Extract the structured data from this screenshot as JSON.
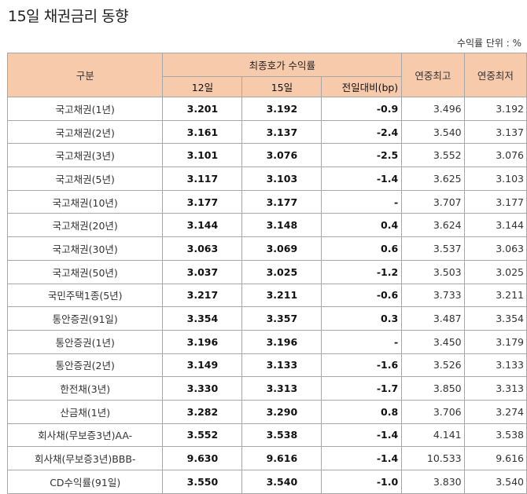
{
  "title": "15일 채권금리 동향",
  "unit_label": "수익률 단위 : %",
  "table": {
    "headers": {
      "category": "구분",
      "group": "최종호가 수익률",
      "day12": "12일",
      "day15": "15일",
      "diff": "전일대비(bp)",
      "year_high": "연중최고",
      "year_low": "연중최저"
    },
    "rows": [
      {
        "name": "국고채권(1년)",
        "d12": "3.201",
        "d15": "3.192",
        "diff": "-0.9",
        "high": "3.496",
        "low": "3.192"
      },
      {
        "name": "국고채권(2년)",
        "d12": "3.161",
        "d15": "3.137",
        "diff": "-2.4",
        "high": "3.540",
        "low": "3.137"
      },
      {
        "name": "국고채권(3년)",
        "d12": "3.101",
        "d15": "3.076",
        "diff": "-2.5",
        "high": "3.552",
        "low": "3.076"
      },
      {
        "name": "국고채권(5년)",
        "d12": "3.117",
        "d15": "3.103",
        "diff": "-1.4",
        "high": "3.625",
        "low": "3.103"
      },
      {
        "name": "국고채권(10년)",
        "d12": "3.177",
        "d15": "3.177",
        "diff": "-",
        "high": "3.707",
        "low": "3.177"
      },
      {
        "name": "국고채권(20년)",
        "d12": "3.144",
        "d15": "3.148",
        "diff": "0.4",
        "high": "3.624",
        "low": "3.144"
      },
      {
        "name": "국고채권(30년)",
        "d12": "3.063",
        "d15": "3.069",
        "diff": "0.6",
        "high": "3.537",
        "low": "3.063"
      },
      {
        "name": "국고채권(50년)",
        "d12": "3.037",
        "d15": "3.025",
        "diff": "-1.2",
        "high": "3.503",
        "low": "3.025"
      },
      {
        "name": "국민주택1종(5년)",
        "d12": "3.217",
        "d15": "3.211",
        "diff": "-0.6",
        "high": "3.733",
        "low": "3.211"
      },
      {
        "name": "통안증권(91일)",
        "d12": "3.354",
        "d15": "3.357",
        "diff": "0.3",
        "high": "3.487",
        "low": "3.354"
      },
      {
        "name": "통안증권(1년)",
        "d12": "3.196",
        "d15": "3.196",
        "diff": "-",
        "high": "3.450",
        "low": "3.179"
      },
      {
        "name": "통안증권(2년)",
        "d12": "3.149",
        "d15": "3.133",
        "diff": "-1.6",
        "high": "3.526",
        "low": "3.133"
      },
      {
        "name": "한전채(3년)",
        "d12": "3.330",
        "d15": "3.313",
        "diff": "-1.7",
        "high": "3.850",
        "low": "3.313"
      },
      {
        "name": "산금채(1년)",
        "d12": "3.282",
        "d15": "3.290",
        "diff": "0.8",
        "high": "3.706",
        "low": "3.274"
      },
      {
        "name": "회사채(무보증3년)AA-",
        "d12": "3.552",
        "d15": "3.538",
        "diff": "-1.4",
        "high": "4.141",
        "low": "3.538"
      },
      {
        "name": "회사채(무보증3년)BBB-",
        "d12": "9.630",
        "d15": "9.616",
        "diff": "-1.4",
        "high": "10.533",
        "low": "9.616"
      },
      {
        "name": "CD수익률(91일)",
        "d12": "3.550",
        "d15": "3.540",
        "diff": "-1.0",
        "high": "3.830",
        "low": "3.540"
      }
    ]
  }
}
